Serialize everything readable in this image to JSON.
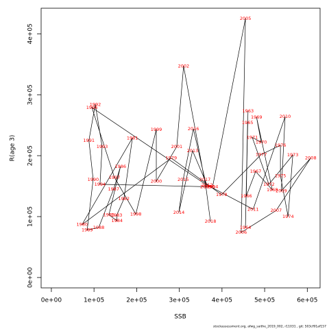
{
  "chart_data": {
    "type": "line",
    "xlabel": "SSB",
    "ylabel": "R(age 3)",
    "footer": "stockassessment.org, afwg_saithe_2019_002, r11031 , git: 503cf91af157",
    "color": "#000000",
    "label_color": "#ff0000",
    "labels": [
      1963,
      1964,
      1965,
      1966,
      1967,
      1968,
      1969,
      1970,
      1971,
      1972,
      1973,
      1974,
      1975,
      1976,
      1977,
      1978,
      1979,
      1980,
      1981,
      1982,
      1983,
      1984,
      1985,
      1986,
      1987,
      1988,
      1989,
      1990,
      1991,
      1992,
      1993,
      1994,
      1995,
      1996,
      1997,
      1998,
      1999,
      2000,
      2001,
      2002,
      2003,
      2004,
      2005,
      2006,
      2007,
      2008,
      2009,
      2010,
      2011,
      2012,
      2013,
      2014,
      2015,
      2016,
      2017,
      2018
    ],
    "x": [
      461000,
      455000,
      460000,
      457000,
      479000,
      518000,
      481000,
      492000,
      471000,
      510000,
      566000,
      555000,
      537000,
      537000,
      492000,
      399000,
      281000,
      72000,
      190000,
      170000,
      153000,
      154000,
      135000,
      162000,
      146000,
      111000,
      84000,
      98000,
      88000,
      103000,
      119000,
      114000,
      370000,
      95000,
      148000,
      198000,
      246000,
      246000,
      294000,
      310000,
      362000,
      378000,
      455000,
      445000,
      527000,
      608000,
      539000,
      548000,
      473000,
      365000,
      331000,
      299000,
      309000,
      333000,
      360000,
      373000
    ],
    "values": [
      273000,
      82000,
      254000,
      134000,
      174000,
      144000,
      263000,
      222000,
      230000,
      153000,
      201000,
      100000,
      167000,
      217000,
      202000,
      136000,
      196000,
      87000,
      229000,
      129000,
      102000,
      93000,
      103000,
      182000,
      145000,
      82000,
      78000,
      161000,
      225000,
      284000,
      215000,
      153000,
      149000,
      279000,
      164000,
      104000,
      243000,
      158000,
      215000,
      347000,
      149000,
      149000,
      425000,
      74000,
      110000,
      196000,
      142000,
      264000,
      112000,
      152000,
      208000,
      107000,
      161000,
      244000,
      161000,
      92000
    ],
    "xlim": [
      -24000,
      630000
    ],
    "ylim": [
      -17000,
      442000
    ],
    "xticks": [
      {
        "value": 0,
        "label": "0e+00"
      },
      {
        "value": 100000,
        "label": "1e+05"
      },
      {
        "value": 200000,
        "label": "2e+05"
      },
      {
        "value": 300000,
        "label": "3e+05"
      },
      {
        "value": 400000,
        "label": "4e+05"
      },
      {
        "value": 500000,
        "label": "5e+05"
      },
      {
        "value": 600000,
        "label": "6e+05"
      }
    ],
    "yticks": [
      {
        "value": 0,
        "label": "0e+00"
      },
      {
        "value": 100000,
        "label": "1e+05"
      },
      {
        "value": 200000,
        "label": "2e+05"
      },
      {
        "value": 300000,
        "label": "3e+05"
      },
      {
        "value": 400000,
        "label": "4e+05"
      }
    ]
  }
}
